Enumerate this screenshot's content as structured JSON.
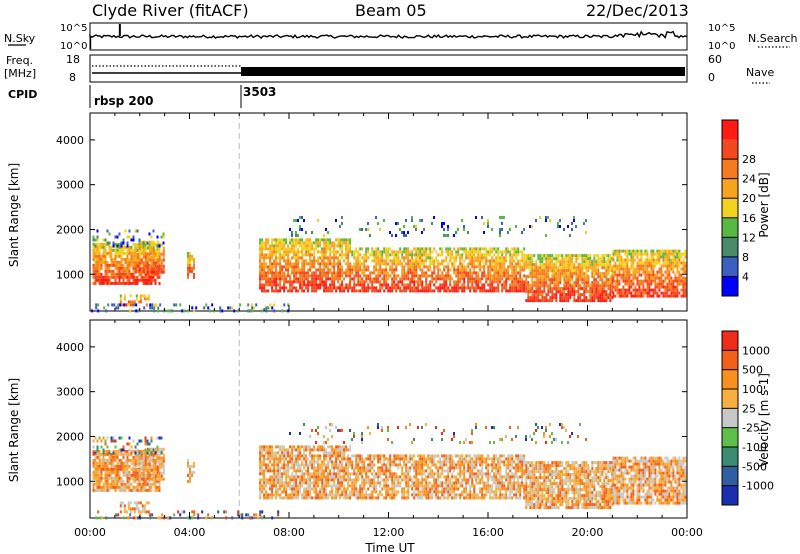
{
  "header": {
    "station": "Clyde River (fitACF)",
    "beam": "Beam 05",
    "date": "22/Dec/2013"
  },
  "status_panels": {
    "nsky_label": "N.Sky",
    "nsearch_label": "N.Search",
    "nsky_ticks": [
      "10^5",
      "10^0"
    ],
    "nsearch_ticks": [
      "10^5",
      "10^0"
    ],
    "freq_label_1": "Freq.",
    "freq_label_2": "[MHz]",
    "freq_ticks": [
      "18",
      "8"
    ],
    "nave_label": "Nave",
    "nave_ticks": [
      "60",
      "0"
    ],
    "cpid_label": "CPID",
    "cpid_segments": [
      {
        "label": "rbsp 200",
        "start_h": 0
      },
      {
        "label": "3503",
        "start_h": 6
      }
    ]
  },
  "chart_data": [
    {
      "type": "heatmap",
      "name": "power",
      "xlabel": "",
      "ylabel": "Slant Range [km]",
      "xlim": [
        0,
        24
      ],
      "ylim": [
        180,
        4600
      ],
      "yticks": [
        1000,
        2000,
        3000,
        4000
      ],
      "colorbar_label": "Power [dB]",
      "colorbar_ticks": [
        "4",
        "8",
        "12",
        "16",
        "20",
        "24",
        "28"
      ],
      "colorbar_colors": [
        "#0000ff",
        "#3c5fc4",
        "#4a8a6a",
        "#59b843",
        "#f2d21e",
        "#f7a51e",
        "#f47a20",
        "#f24a1e",
        "#ff1a14"
      ]
    },
    {
      "type": "heatmap",
      "name": "velocity",
      "xlabel": "Time UT",
      "ylabel": "Slant Range [km]",
      "xlim": [
        0,
        24
      ],
      "ylim": [
        180,
        4600
      ],
      "yticks": [
        1000,
        2000,
        3000,
        4000
      ],
      "xticks": [
        "00:00",
        "04:00",
        "08:00",
        "12:00",
        "16:00",
        "20:00",
        "00:00"
      ],
      "colorbar_label": "Velocity [m s-1]",
      "colorbar_ticks": [
        "1000",
        "500",
        "100",
        "25",
        "-25",
        "-100",
        "-500",
        "-1000"
      ],
      "colorbar_colors": [
        "#1a2fb0",
        "#2f5fa0",
        "#3b8c70",
        "#5ec04a",
        "#c8c8c8",
        "#f7b040",
        "#f7901e",
        "#f2601a",
        "#ee2c1a"
      ]
    }
  ]
}
